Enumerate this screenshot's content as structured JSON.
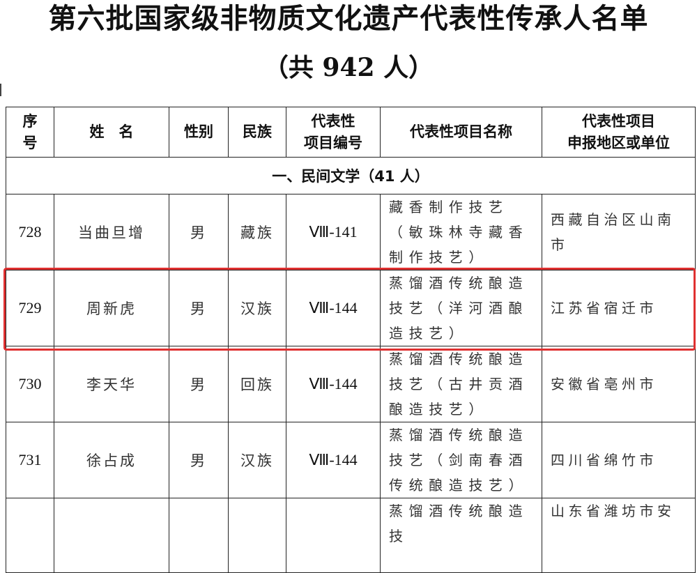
{
  "document": {
    "title": "第六批国家级非物质文化遗产代表性传承人名单",
    "subtitle": "（共 942 人）"
  },
  "table": {
    "headers": {
      "index": "序号",
      "name": "姓　名",
      "gender": "性别",
      "ethnicity": "民族",
      "code_line1": "代表性",
      "code_line2": "项目编号",
      "project": "代表性项目名称",
      "region_line1": "代表性项目",
      "region_line2": "申报地区或单位"
    },
    "section": "一、民间文学（41 人）",
    "rows": [
      {
        "index": "728",
        "name": "当曲旦增",
        "gender": "男",
        "ethnicity": "藏族",
        "code": "Ⅷ-141",
        "project": "藏香制作技艺（敏珠林寺藏香制作技艺）",
        "region": "西藏自治区山南市"
      },
      {
        "index": "729",
        "name": "周新虎",
        "gender": "男",
        "ethnicity": "汉族",
        "code": "Ⅷ-144",
        "project": "蒸馏酒传统酿造技艺（洋河酒酿造技艺）",
        "region": "江苏省宿迁市"
      },
      {
        "index": "730",
        "name": "李天华",
        "gender": "男",
        "ethnicity": "回族",
        "code": "Ⅷ-144",
        "project": "蒸馏酒传统酿造技艺（古井贡酒酿造技艺）",
        "region": "安徽省亳州市"
      },
      {
        "index": "731",
        "name": "徐占成",
        "gender": "男",
        "ethnicity": "汉族",
        "code": "Ⅷ-144",
        "project": "蒸馏酒传统酿造技艺（剑南春酒传统酿造技艺）",
        "region": "四川省绵竹市"
      },
      {
        "index": "",
        "name": "",
        "gender": "",
        "ethnicity": "",
        "code": "",
        "project": "蒸馏酒传统酿造技",
        "region": "山东省潍坊市安"
      }
    ],
    "highlighted_row": "729",
    "highlight_color": "#e03030"
  }
}
